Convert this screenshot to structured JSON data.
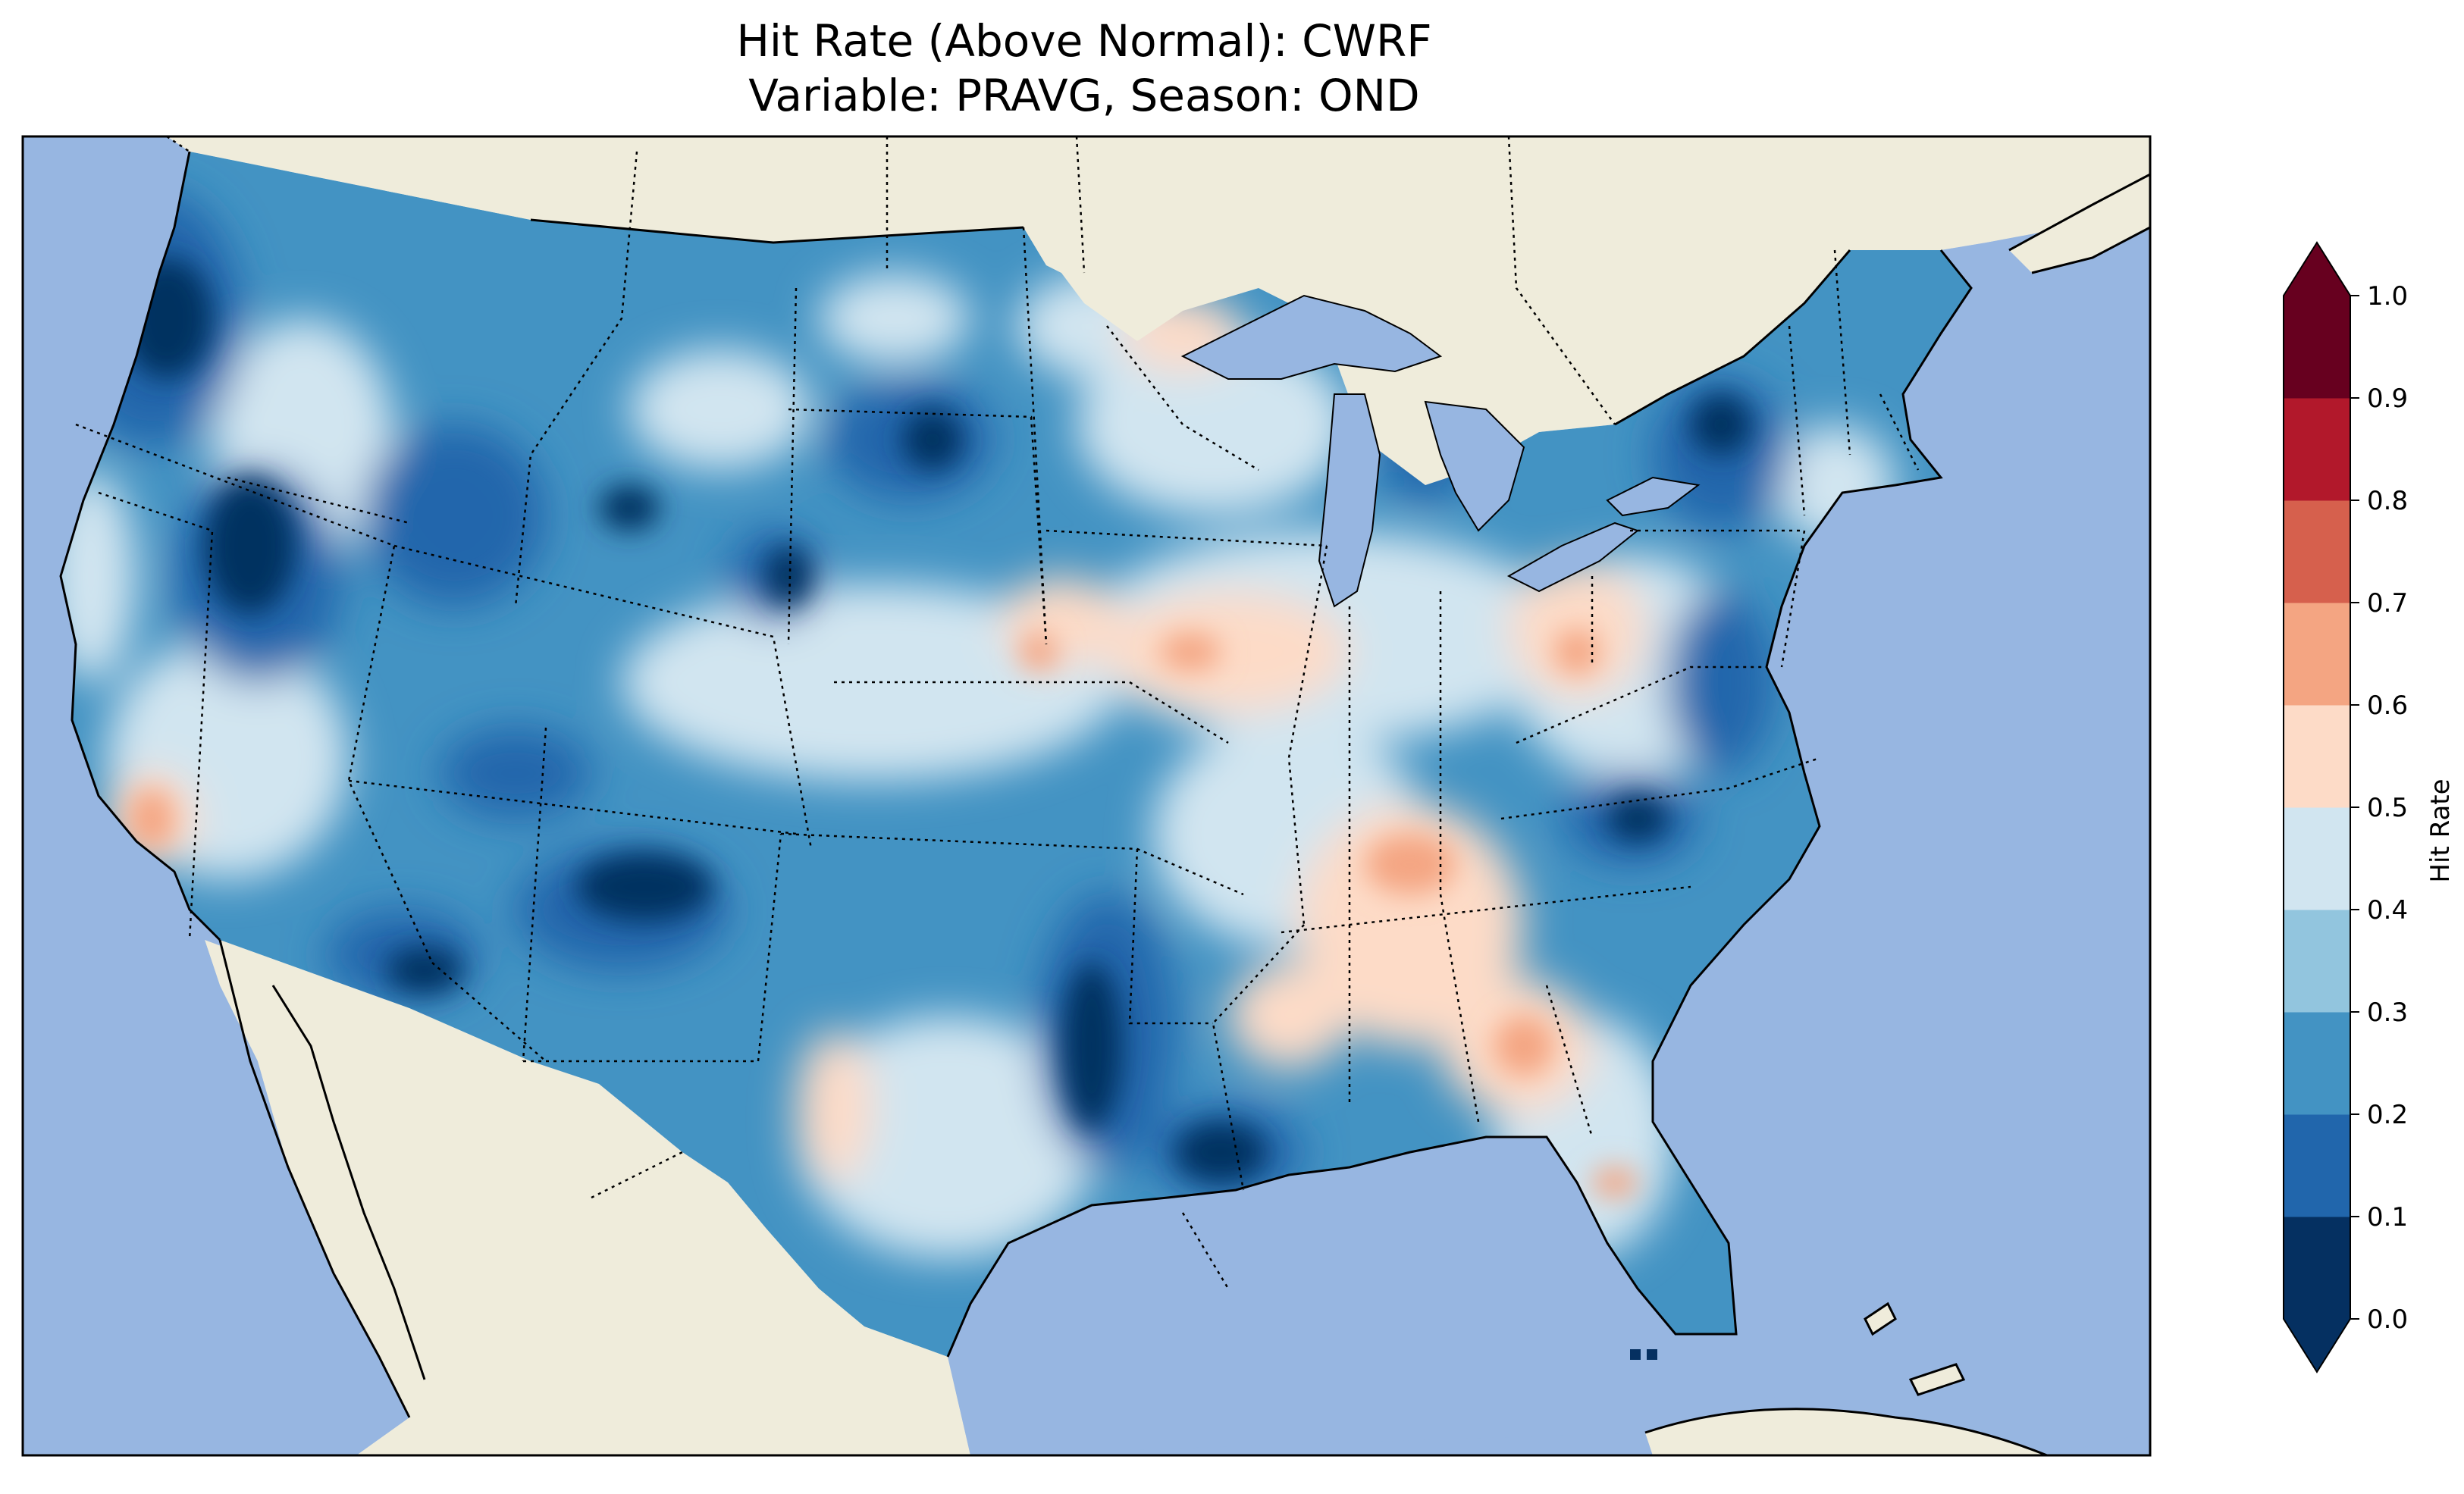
{
  "title": {
    "line1": "Hit Rate (Above Normal): CWRF",
    "line2": "Variable: PRAVG, Season: OND"
  },
  "map": {
    "ocean_color": "#97b6e1",
    "land_color": "#efecdb",
    "lake_color": "#97b6e1",
    "extent": "Contiguous United States",
    "state_borders": "dotted",
    "colormap": "RdBu_r"
  },
  "colorbar": {
    "label": "Hit Rate",
    "ticks": [
      "0.0",
      "0.1",
      "0.2",
      "0.3",
      "0.4",
      "0.5",
      "0.6",
      "0.7",
      "0.8",
      "0.9",
      "1.0"
    ],
    "levels": [
      0,
      0.1,
      0.2,
      0.3,
      0.4,
      0.5,
      0.6,
      0.7,
      0.8,
      0.9,
      1.0
    ],
    "colors": [
      "#053061",
      "#2166ac",
      "#4393c3",
      "#92c5de",
      "#d1e5f0",
      "#fddbc7",
      "#f4a582",
      "#d6604d",
      "#b2182b",
      "#67001f"
    ],
    "extend": "both",
    "under_color": "#053061",
    "over_color": "#67001f"
  }
}
